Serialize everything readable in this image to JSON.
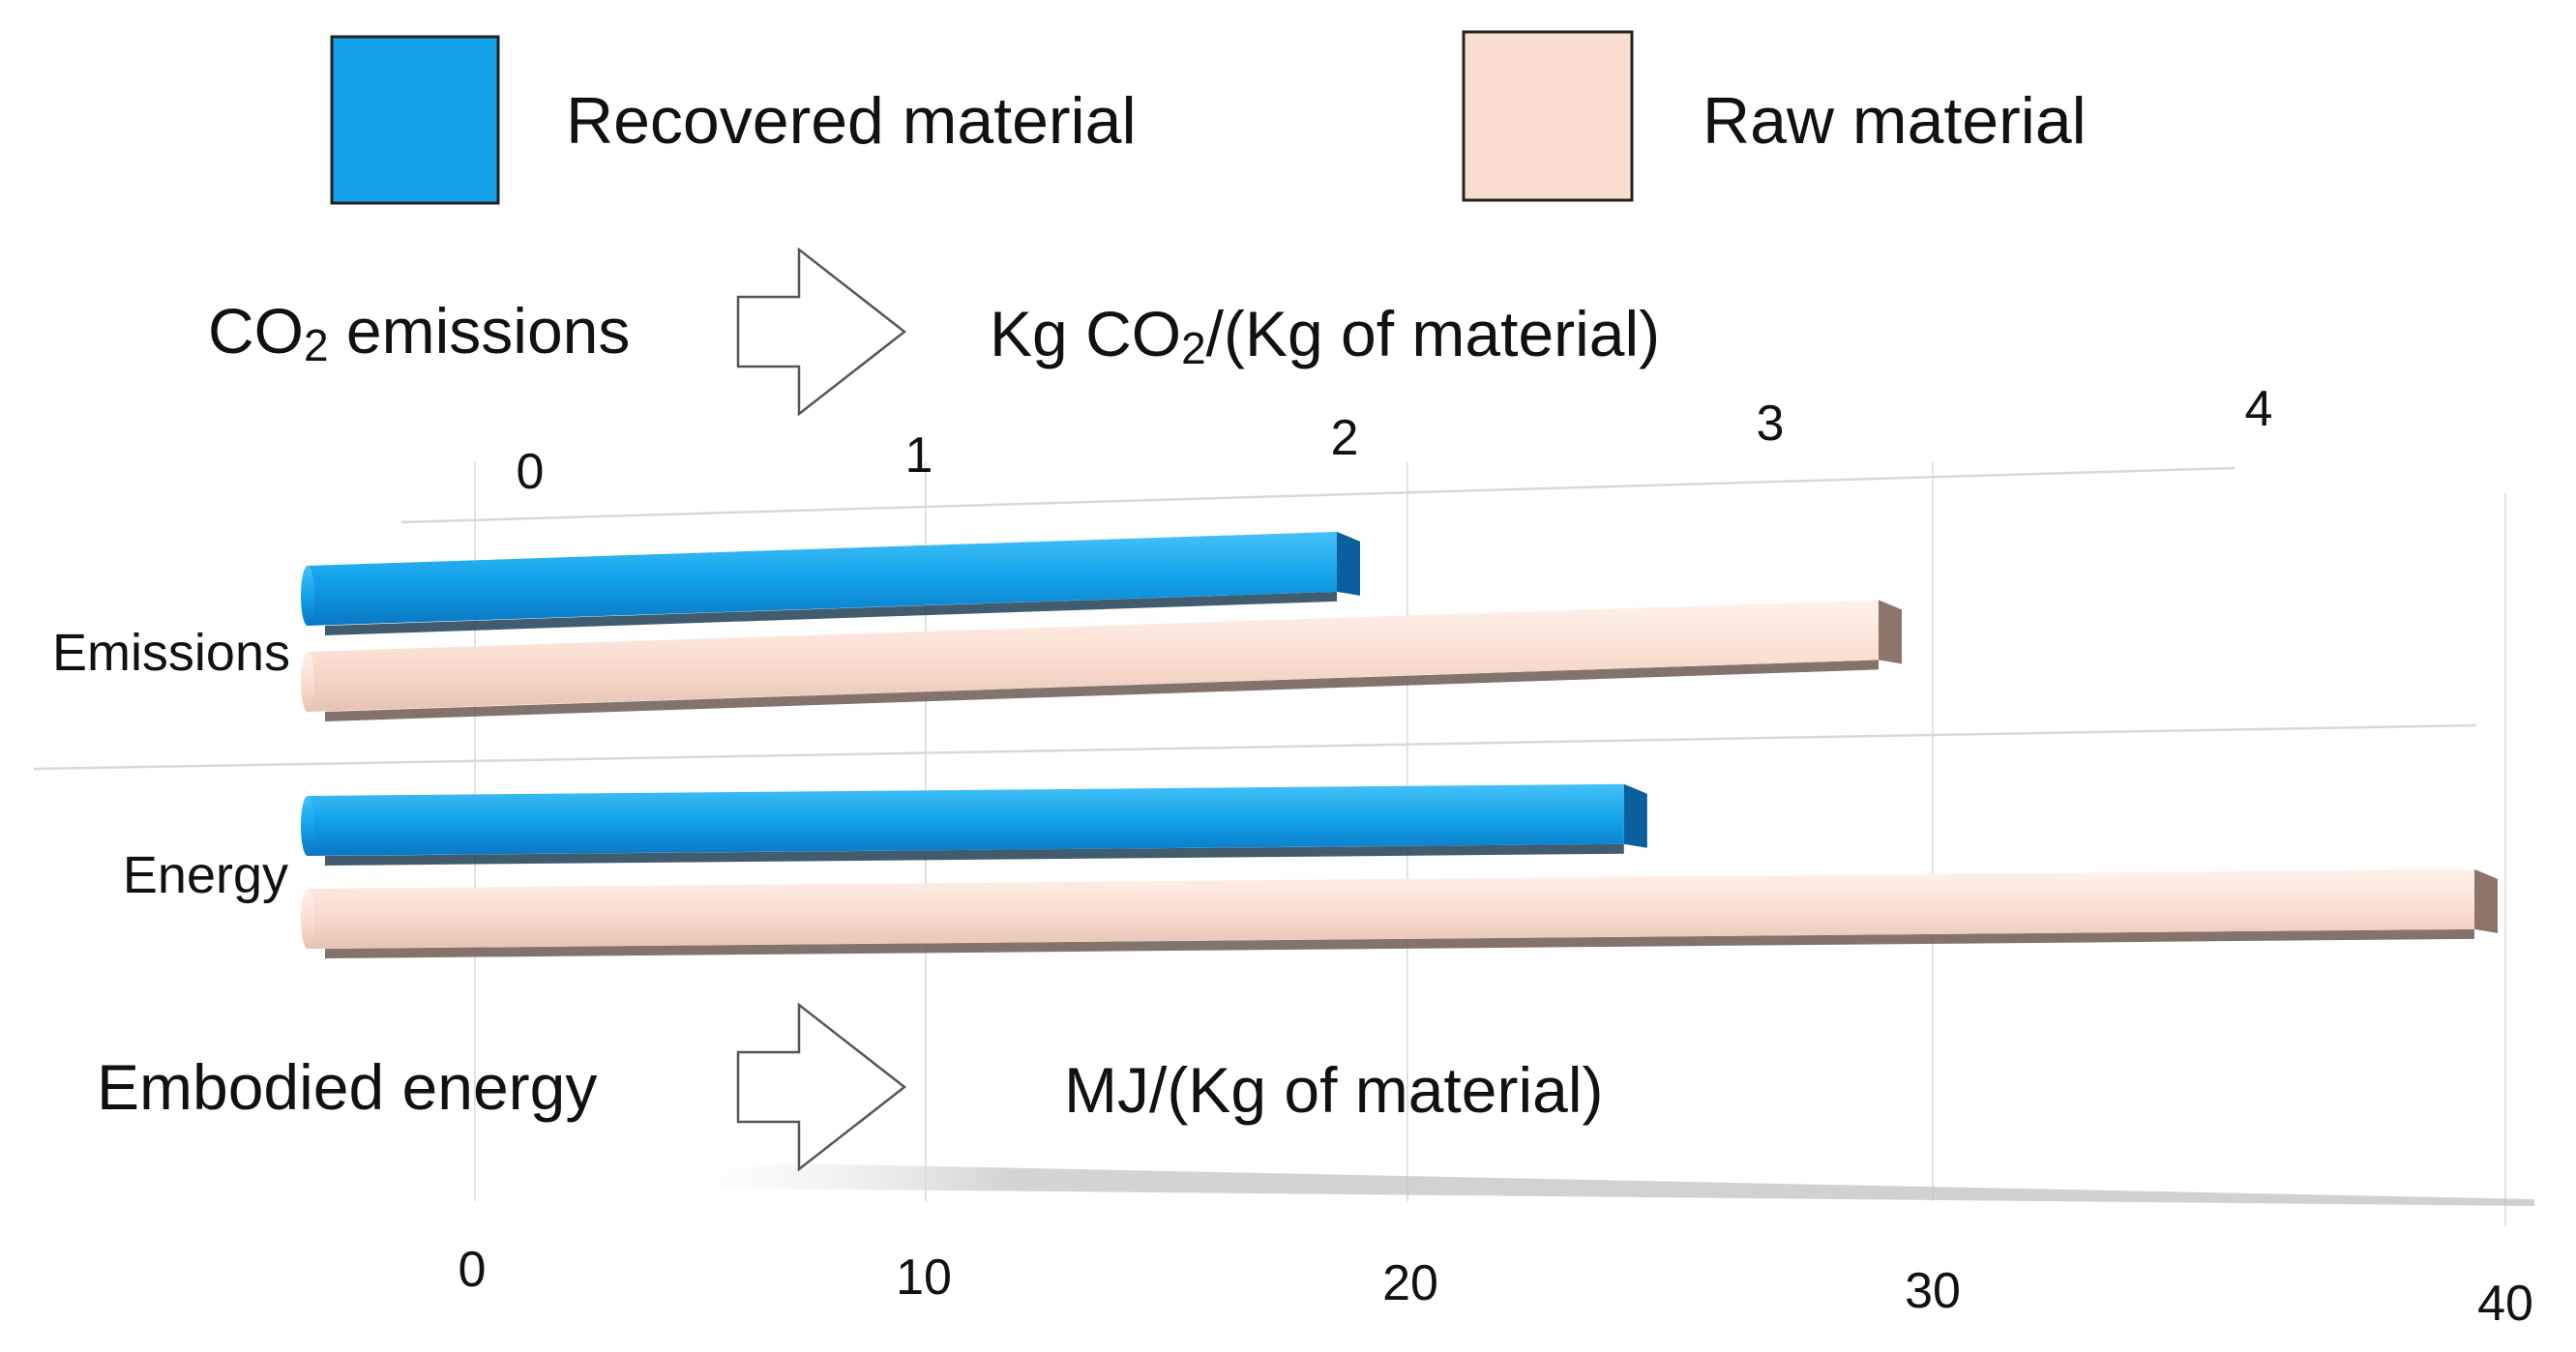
{
  "chart_data": {
    "type": "bar",
    "orientation": "horizontal",
    "categories": [
      "Emissions",
      "Energy"
    ],
    "series": [
      {
        "name": "Recovered material",
        "color": "#14a0e8",
        "values": [
          1.9,
          24.3
        ]
      },
      {
        "name": "Raw material",
        "color": "#f9ddd0",
        "values": [
          2.9,
          40
        ]
      }
    ],
    "units": [
      "Kg CO2/(Kg of material)",
      "MJ/(Kg of material)"
    ],
    "top_axis": {
      "ticks": [
        "0",
        "1",
        "2",
        "3",
        "4"
      ],
      "range": [
        0,
        4
      ]
    },
    "bottom_axis": {
      "ticks": [
        "0",
        "10",
        "20",
        "30",
        "40"
      ],
      "range": [
        0,
        40
      ]
    },
    "legend": {
      "position": "top",
      "items": [
        {
          "label": "Recovered material",
          "color": "#14a0e8"
        },
        {
          "label": "Raw material",
          "color": "#f9ddd0"
        }
      ]
    },
    "annotations": {
      "co2": {
        "label_main": "CO",
        "label_sub": "2",
        "label_rest": " emissions",
        "unit_main": "Kg CO",
        "unit_sub": "2",
        "unit_rest": "/(Kg of material)"
      },
      "energy": {
        "label": "Embodied energy",
        "unit": "MJ/(Kg of material)"
      }
    },
    "category_label_color": "#e8372b",
    "grid": true
  }
}
